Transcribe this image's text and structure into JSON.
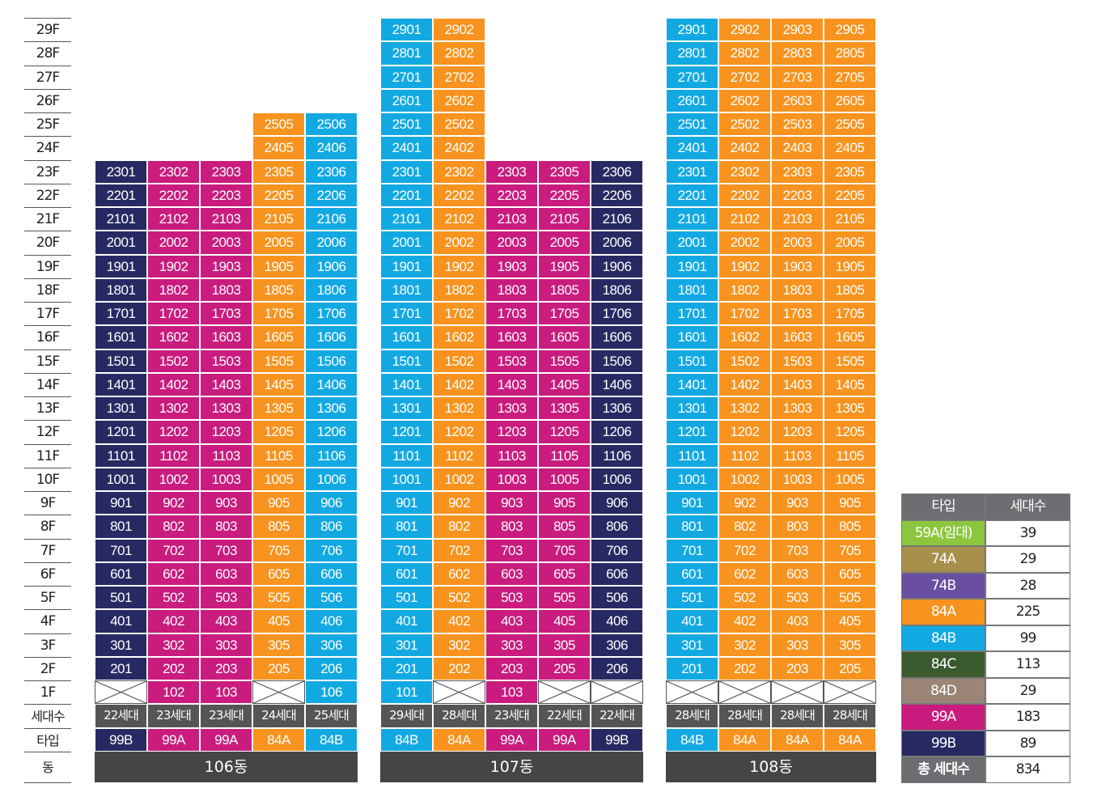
{
  "floors": [
    "29F",
    "28F",
    "27F",
    "26F",
    "25F",
    "24F",
    "23F",
    "22F",
    "21F",
    "20F",
    "19F",
    "18F",
    "17F",
    "16F",
    "15F",
    "14F",
    "13F",
    "12F",
    "11F",
    "10F",
    "9F",
    "8F",
    "7F",
    "6F",
    "5F",
    "4F",
    "3F",
    "2F",
    "1F"
  ],
  "row_labels": {
    "count": "세대수",
    "type": "타입",
    "building": "동"
  },
  "colors": {
    "99B": "#272a62",
    "99A": "#c91c7e",
    "84A": "#f7931e",
    "84B": "#12a9e3",
    "59A(임대)": "#8cc63f",
    "74A": "#a8904c",
    "74B": "#6a4ea0",
    "84C": "#3b5a2e",
    "84D": "#9a8577",
    "header": "#6d6e71",
    "count": "#555555",
    "building": "#454545"
  },
  "buildings": [
    {
      "name": "106동",
      "lines": [
        {
          "suffix": "01",
          "type": "99B",
          "top_floor": 23,
          "vacant_floors": [
            1
          ],
          "count": "22세대"
        },
        {
          "suffix": "02",
          "type": "99A",
          "top_floor": 23,
          "vacant_floors": [],
          "count": "23세대"
        },
        {
          "suffix": "03",
          "type": "99A",
          "top_floor": 23,
          "vacant_floors": [],
          "count": "23세대"
        },
        {
          "suffix": "05",
          "type": "84A",
          "top_floor": 25,
          "vacant_floors": [
            1
          ],
          "count": "24세대"
        },
        {
          "suffix": "06",
          "type": "84B",
          "top_floor": 25,
          "vacant_floors": [],
          "count": "25세대"
        }
      ]
    },
    {
      "name": "107동",
      "lines": [
        {
          "suffix": "01",
          "type": "84B",
          "top_floor": 29,
          "vacant_floors": [],
          "count": "29세대"
        },
        {
          "suffix": "02",
          "type": "84A",
          "top_floor": 29,
          "vacant_floors": [
            1
          ],
          "count": "28세대"
        },
        {
          "suffix": "03",
          "type": "99A",
          "top_floor": 23,
          "vacant_floors": [],
          "count": "23세대"
        },
        {
          "suffix": "05",
          "type": "99A",
          "top_floor": 23,
          "vacant_floors": [
            1
          ],
          "count": "22세대"
        },
        {
          "suffix": "06",
          "type": "99B",
          "top_floor": 23,
          "vacant_floors": [
            1
          ],
          "count": "22세대"
        }
      ]
    },
    {
      "name": "108동",
      "lines": [
        {
          "suffix": "01",
          "type": "84B",
          "top_floor": 29,
          "vacant_floors": [
            1
          ],
          "count": "28세대"
        },
        {
          "suffix": "02",
          "type": "84A",
          "top_floor": 29,
          "vacant_floors": [
            1
          ],
          "count": "28세대"
        },
        {
          "suffix": "03",
          "type": "84A",
          "top_floor": 29,
          "vacant_floors": [
            1
          ],
          "count": "28세대"
        },
        {
          "suffix": "05",
          "type": "84A",
          "top_floor": 29,
          "vacant_floors": [
            1
          ],
          "count": "28세대"
        }
      ]
    }
  ],
  "legend": {
    "header": {
      "type": "타입",
      "count": "세대수"
    },
    "rows": [
      {
        "type": "59A(임대)",
        "count": "39"
      },
      {
        "type": "74A",
        "count": "29"
      },
      {
        "type": "74B",
        "count": "28"
      },
      {
        "type": "84A",
        "count": "225"
      },
      {
        "type": "84B",
        "count": "99"
      },
      {
        "type": "84C",
        "count": "113"
      },
      {
        "type": "84D",
        "count": "29"
      },
      {
        "type": "99A",
        "count": "183"
      },
      {
        "type": "99B",
        "count": "89"
      }
    ],
    "total": {
      "label": "총 세대수",
      "count": "834"
    }
  }
}
